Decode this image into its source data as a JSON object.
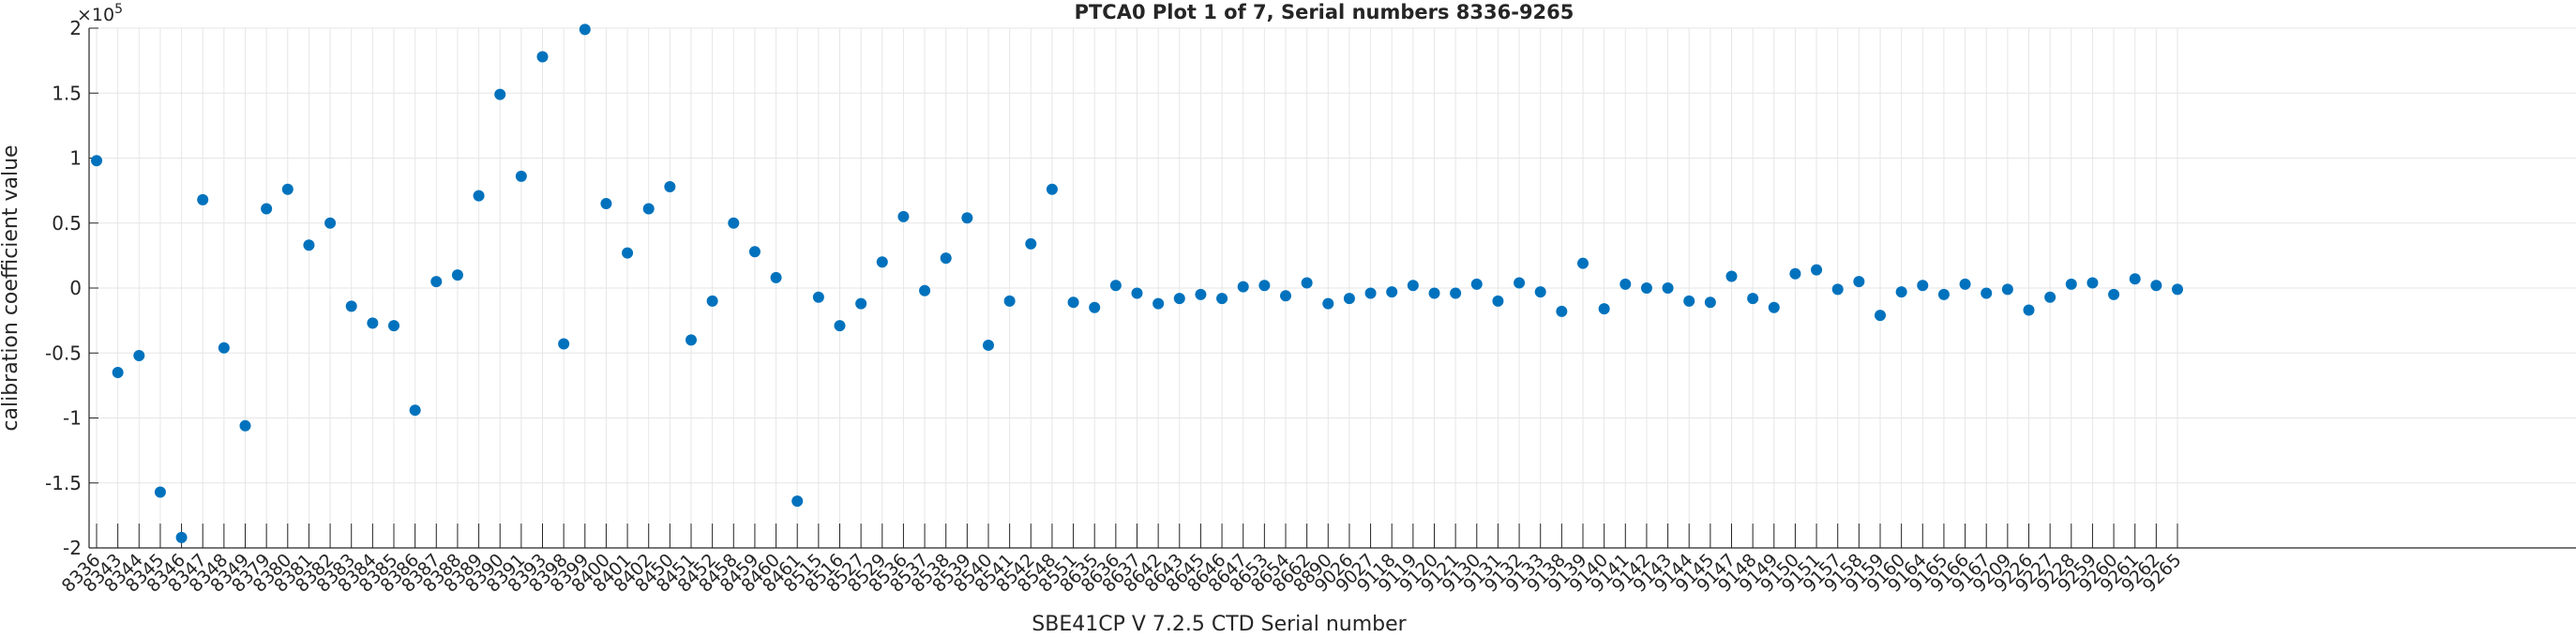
{
  "chart_data": {
    "type": "scatter",
    "title": "PTCA0 Plot 1 of 7, Serial numbers 8336-9265",
    "xlabel": "SBE41CP V 7.2.5 CTD Serial number",
    "ylabel": "calibration coefficient value",
    "y_exponent_label": "×10",
    "y_exponent_power": "5",
    "ylim": [
      -200000,
      200000
    ],
    "y_ticks": [
      -200000,
      -150000,
      -100000,
      -50000,
      0,
      50000,
      100000,
      150000,
      200000
    ],
    "y_tick_labels": [
      "-2",
      "-1.5",
      "-1",
      "-0.5",
      "0",
      "0.5",
      "1",
      "1.5",
      "2"
    ],
    "grid": true,
    "marker_color": "#0072BD",
    "categories": [
      "8336",
      "8343",
      "8344",
      "8345",
      "8346",
      "8347",
      "8348",
      "8349",
      "8379",
      "8380",
      "8381",
      "8382",
      "8383",
      "8384",
      "8385",
      "8386",
      "8387",
      "8388",
      "8389",
      "8390",
      "8391",
      "8393",
      "8398",
      "8399",
      "8400",
      "8401",
      "8402",
      "8450",
      "8451",
      "8452",
      "8458",
      "8459",
      "8460",
      "8461",
      "8515",
      "8516",
      "8527",
      "8529",
      "8536",
      "8537",
      "8538",
      "8539",
      "8540",
      "8541",
      "8542",
      "8548",
      "8551",
      "8635",
      "8636",
      "8637",
      "8642",
      "8643",
      "8645",
      "8646",
      "8647",
      "8653",
      "8654",
      "8662",
      "8890",
      "9026",
      "9027",
      "9118",
      "9119",
      "9120",
      "9121",
      "9130",
      "9131",
      "9132",
      "9133",
      "9138",
      "9139",
      "9140",
      "9141",
      "9142",
      "9143",
      "9144",
      "9145",
      "9147",
      "9148",
      "9149",
      "9150",
      "9151",
      "9157",
      "9158",
      "9159",
      "9160",
      "9164",
      "9165",
      "9166",
      "9167",
      "9209",
      "9226",
      "9227",
      "9228",
      "9259",
      "9260",
      "9261",
      "9262",
      "9265"
    ],
    "values": [
      98000,
      -65000,
      -52000,
      -157000,
      -192000,
      68000,
      -46000,
      -106000,
      61000,
      76000,
      33000,
      50000,
      -14000,
      -27000,
      -29000,
      -94000,
      5000,
      10000,
      71000,
      149000,
      86000,
      178000,
      -43000,
      199000,
      65000,
      27000,
      61000,
      78000,
      -40000,
      -10000,
      50000,
      28000,
      8000,
      -164000,
      -7000,
      -29000,
      -12000,
      20000,
      55000,
      -2000,
      23000,
      54000,
      -44000,
      -10000,
      34000,
      76000,
      -11000,
      -15000,
      2000,
      -4000,
      -12000,
      -8000,
      -5000,
      -8000,
      1000,
      2000,
      -6000,
      4000,
      -12000,
      -8000,
      -4000,
      -3000,
      2000,
      -4000,
      -4000,
      3000,
      -10000,
      4000,
      -3000,
      -18000,
      19000,
      -16000,
      3000,
      0,
      0,
      -10000,
      -11000,
      9000,
      -8000,
      -15000,
      11000,
      14000,
      -1000,
      5000,
      -21000,
      -3000,
      2000,
      -5000,
      3000,
      -4000,
      -1000,
      -17000,
      -7000,
      3000,
      4000,
      -5000,
      7000,
      2000,
      -1000
    ]
  }
}
